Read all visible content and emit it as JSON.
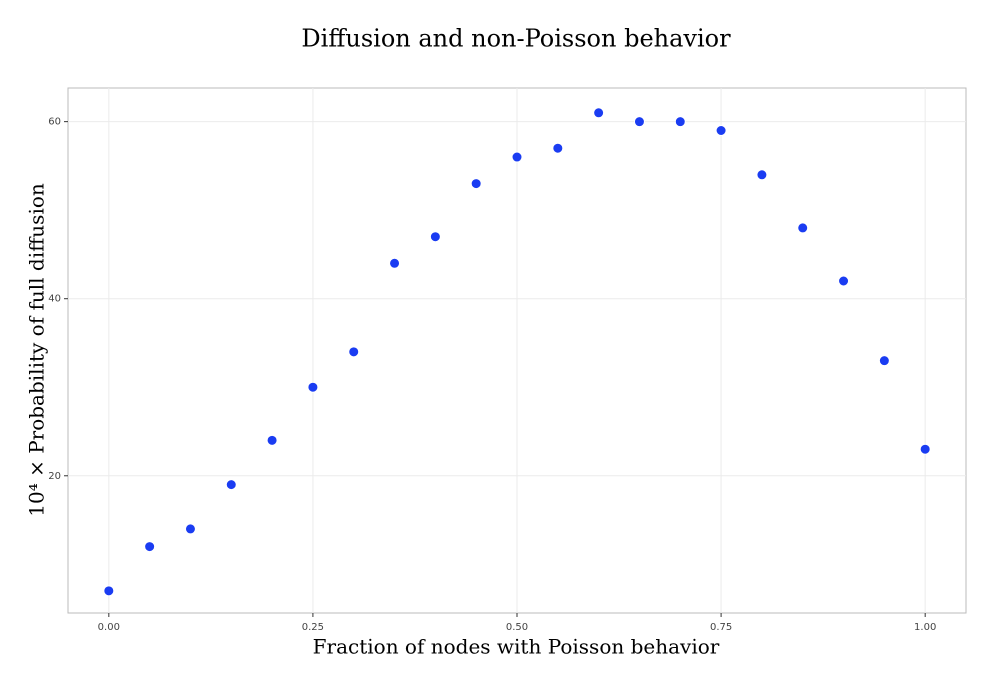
{
  "chart_data": {
    "type": "scatter",
    "title": "Diffusion and non-Poisson behavior",
    "x_label": "Fraction of nodes with Poisson behavior",
    "y_label": "10⁴ × Probability of full diffusion",
    "x": [
      0,
      0.05,
      0.1,
      0.15,
      0.2,
      0.25,
      0.3,
      0.35,
      0.4,
      0.45,
      0.5,
      0.55,
      0.6,
      0.65,
      0.7,
      0.75,
      0.8,
      0.85,
      0.9,
      0.95,
      1.0
    ],
    "values": [
      7,
      12,
      14,
      19,
      24,
      30,
      34,
      44,
      47,
      53,
      56,
      57,
      61,
      60,
      60,
      59,
      54,
      48,
      42,
      33,
      23
    ],
    "color": "#1a3cf2",
    "xlim": [
      -0.05,
      1.05
    ],
    "ylim": [
      4.5,
      63.8
    ],
    "xticks": [
      {
        "value": 0,
        "label": "0.00"
      },
      {
        "value": 0.25,
        "label": "0.25"
      },
      {
        "value": 0.5,
        "label": "0.50"
      },
      {
        "value": 0.75,
        "label": "0.75"
      },
      {
        "value": 1,
        "label": "1.00"
      }
    ],
    "yticks": [
      20,
      40,
      60
    ],
    "grid": true
  }
}
